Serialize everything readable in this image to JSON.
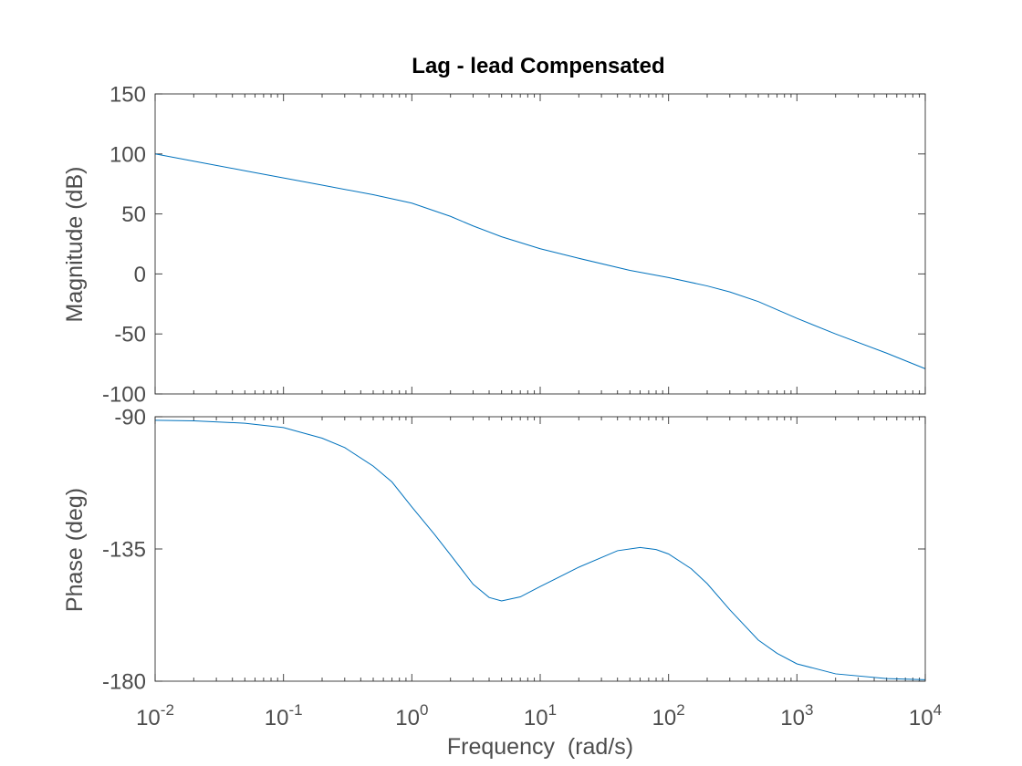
{
  "chart_data": [
    {
      "type": "line",
      "title": "Lag - lead Compensated",
      "xlabel": "",
      "ylabel": "Magnitude (dB)",
      "xscale": "log",
      "xlim": [
        0.01,
        10000
      ],
      "ylim": [
        -100,
        150
      ],
      "yticks": [
        "150",
        "100",
        "50",
        "0",
        "-50",
        "-100"
      ],
      "series": [
        {
          "color": "#0072bd",
          "x": [
            0.01,
            0.02,
            0.05,
            0.1,
            0.2,
            0.5,
            1,
            2,
            3,
            5,
            10,
            20,
            50,
            100,
            200,
            300,
            500,
            1000,
            2000,
            5000,
            10000
          ],
          "y": [
            100,
            94,
            86,
            80,
            74,
            66,
            59,
            48,
            40,
            31,
            21,
            13,
            3,
            -3,
            -10,
            -15,
            -23,
            -37,
            -50,
            -66,
            -79
          ]
        }
      ]
    },
    {
      "type": "line",
      "xlabel": "Frequency  (rad/s)",
      "ylabel": "Phase (deg)",
      "xscale": "log",
      "xlim": [
        0.01,
        10000
      ],
      "ylim": [
        -180,
        -90
      ],
      "yticks": [
        "-90",
        "-135",
        "-180"
      ],
      "xticks": [
        {
          "base": "10",
          "exp": "-2"
        },
        {
          "base": "10",
          "exp": "-1"
        },
        {
          "base": "10",
          "exp": "0"
        },
        {
          "base": "10",
          "exp": "1"
        },
        {
          "base": "10",
          "exp": "2"
        },
        {
          "base": "10",
          "exp": "3"
        },
        {
          "base": "10",
          "exp": "4"
        }
      ],
      "series": [
        {
          "color": "#0072bd",
          "x": [
            0.01,
            0.02,
            0.05,
            0.1,
            0.2,
            0.3,
            0.5,
            0.7,
            1,
            1.5,
            2,
            3,
            4,
            5,
            7,
            10,
            20,
            40,
            60,
            80,
            100,
            150,
            200,
            300,
            500,
            700,
            1000,
            2000,
            5000,
            10000
          ],
          "y": [
            -91.2,
            -91.4,
            -92.2,
            -93.7,
            -97.3,
            -100.5,
            -106.8,
            -112.2,
            -120.7,
            -130,
            -137,
            -147,
            -151.5,
            -152.7,
            -151.3,
            -147.8,
            -141.2,
            -135.6,
            -134.5,
            -135.2,
            -136.7,
            -141.7,
            -146.8,
            -155.7,
            -166,
            -170.5,
            -174.1,
            -177.5,
            -179.1,
            -179.5
          ]
        }
      ]
    }
  ]
}
